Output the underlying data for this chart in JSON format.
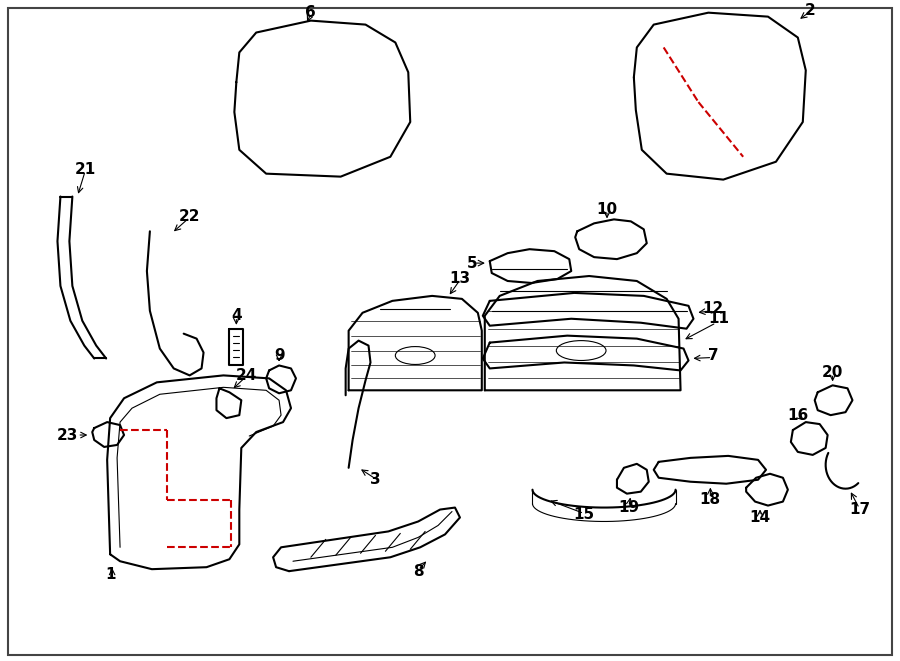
{
  "bg_color": "#ffffff",
  "line_color": "#000000",
  "red_dash_color": "#cc0000",
  "lw_main": 1.5,
  "lw_thin": 0.8,
  "lw_red": 1.5,
  "fontsize_label": 11
}
